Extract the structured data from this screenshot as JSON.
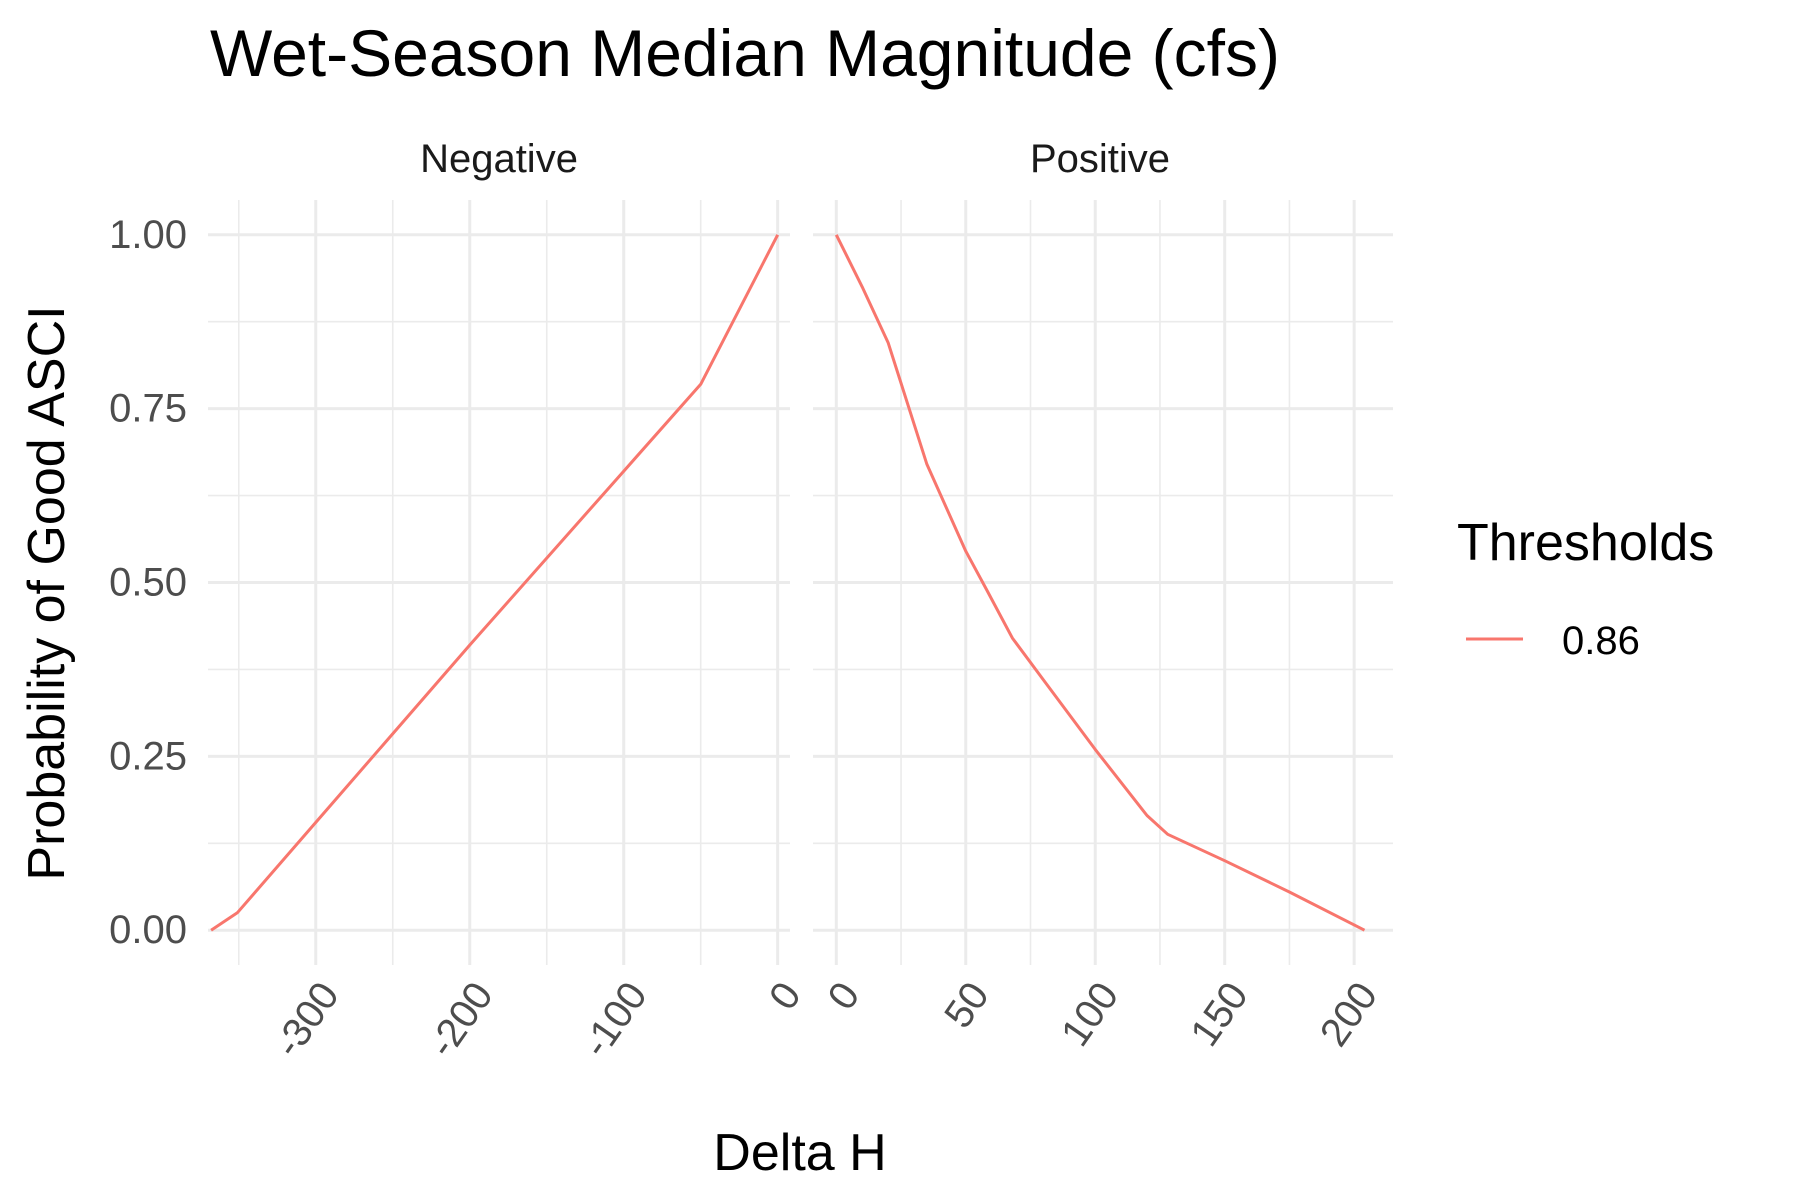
{
  "chart_data": {
    "type": "line",
    "title": "Wet-Season Median Magnitude (cfs)",
    "xlabel": "Delta H",
    "ylabel": "Probability of Good ASCI",
    "legend": {
      "title": "Thresholds",
      "position": "right",
      "entries": [
        {
          "label": "0.86",
          "color": "#F8766D"
        }
      ]
    },
    "grid": true,
    "panels": [
      {
        "name": "Negative",
        "xlim": [
          -370,
          8
        ],
        "ylim": [
          -0.05,
          1.05
        ],
        "x_ticks": [
          -300,
          -200,
          -100,
          0
        ],
        "x_tick_labels": [
          "-300",
          "-200",
          "-100",
          "0"
        ],
        "y_ticks": [
          0,
          0.25,
          0.5,
          0.75,
          1
        ],
        "y_tick_labels": [
          "0.00",
          "0.25",
          "0.50",
          "0.75",
          "1.00"
        ],
        "series": [
          {
            "name": "0.86",
            "color": "#F8766D",
            "x": [
              -368,
              -351,
              -300,
              -200,
              -100,
              -50,
              0
            ],
            "y": [
              0.0,
              0.025,
              0.155,
              0.41,
              0.66,
              0.785,
              1.0
            ]
          }
        ]
      },
      {
        "name": "Positive",
        "xlim": [
          -9,
          215
        ],
        "ylim": [
          -0.05,
          1.05
        ],
        "x_ticks": [
          0,
          50,
          100,
          150,
          200
        ],
        "x_tick_labels": [
          "0",
          "50",
          "100",
          "150",
          "200"
        ],
        "y_ticks": [
          0,
          0.25,
          0.5,
          0.75,
          1
        ],
        "series": [
          {
            "name": "0.86",
            "color": "#F8766D",
            "x": [
              0,
              10,
              20,
              35,
              50,
              58,
              68,
              80,
              100,
              120,
              128,
              150,
              175,
              204
            ],
            "y": [
              1.0,
              0.925,
              0.845,
              0.67,
              0.545,
              0.49,
              0.42,
              0.36,
              0.26,
              0.165,
              0.138,
              0.1,
              0.055,
              0.0
            ]
          }
        ]
      }
    ]
  }
}
